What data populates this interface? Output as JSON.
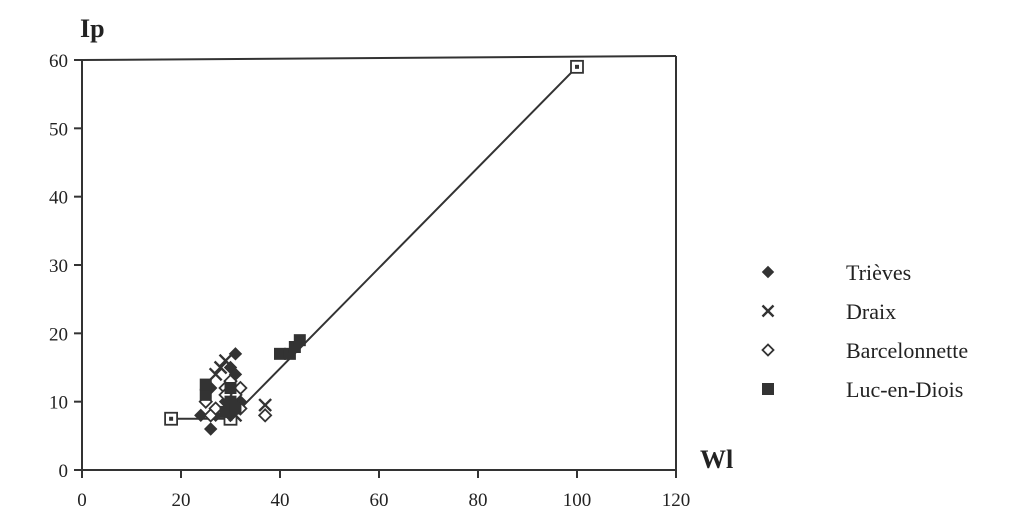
{
  "chart_data": {
    "type": "scatter",
    "title": "",
    "xlabel": "Wl",
    "ylabel": "Ip",
    "xlim": [
      0,
      120
    ],
    "ylim": [
      0,
      60
    ],
    "xticks": [
      "0",
      "20",
      "40",
      "60",
      "80",
      "100",
      "120"
    ],
    "yticks": [
      "0",
      "10",
      "20",
      "30",
      "40",
      "50",
      "60"
    ],
    "grid": false,
    "legend_position": "right",
    "colors": {
      "ink": "#333333"
    },
    "reference_line": {
      "x": [
        18,
        30,
        100
      ],
      "y": [
        7.5,
        7.5,
        59
      ]
    },
    "reference_markers": {
      "marker": "open-square",
      "x": [
        18,
        30,
        100
      ],
      "y": [
        7.5,
        7.5,
        59
      ]
    },
    "series": [
      {
        "name": "Trièves",
        "marker": "diamond-filled",
        "x": [
          24,
          25,
          26,
          26,
          27,
          29,
          30,
          30,
          31,
          31,
          31,
          32,
          30
        ],
        "y": [
          8,
          10,
          6,
          12,
          8,
          10,
          13,
          15,
          17,
          11,
          14,
          10,
          8
        ]
      },
      {
        "name": "Draix",
        "marker": "cross",
        "x": [
          27,
          28,
          29,
          30,
          31,
          30,
          37
        ],
        "y": [
          14,
          15,
          16,
          9,
          8,
          11,
          9.5
        ]
      },
      {
        "name": "Barcelonnette",
        "marker": "diamond-open",
        "x": [
          25,
          26,
          27,
          29,
          30,
          30,
          31,
          32,
          31,
          29,
          32,
          37
        ],
        "y": [
          10,
          8,
          9,
          12,
          10,
          13,
          9,
          12,
          11,
          11,
          9,
          8
        ]
      },
      {
        "name": "Luc-en-Diois",
        "marker": "square-filled",
        "x": [
          25,
          25,
          29,
          30,
          30,
          31,
          40,
          42,
          43,
          44
        ],
        "y": [
          11,
          12.5,
          8.5,
          10,
          12,
          9,
          17,
          17,
          18,
          19
        ]
      }
    ]
  }
}
